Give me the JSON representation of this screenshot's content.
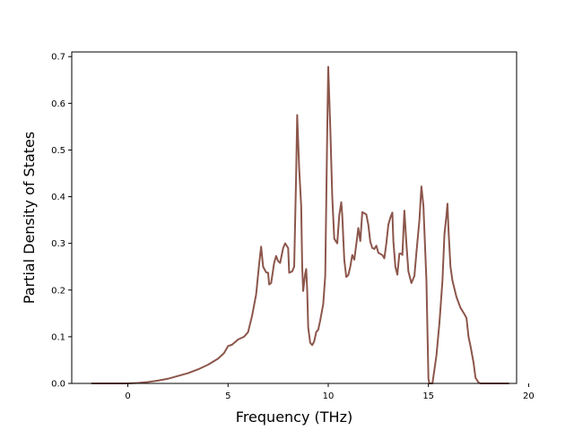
{
  "chart_data": {
    "type": "line",
    "title": "",
    "xlabel": "Frequency (THz)",
    "ylabel": "Partial Density of States",
    "xlim": [
      -2.8,
      19.4
    ],
    "ylim": [
      0.0,
      0.71
    ],
    "grid": false,
    "legend": "none",
    "xticks": [
      "0",
      "5",
      "10",
      "15",
      "20"
    ],
    "xtick_values": [
      0,
      5,
      10,
      15,
      20
    ],
    "yticks": [
      "0.0",
      "0.1",
      "0.2",
      "0.3",
      "0.4",
      "0.5",
      "0.6",
      "0.7"
    ],
    "ytick_values": [
      0.0,
      0.1,
      0.2,
      0.3,
      0.4,
      0.5,
      0.6,
      0.7
    ],
    "series": [
      {
        "color": "#8c564b",
        "points": [
          [
            -1.8,
            0.0
          ],
          [
            -1.0,
            0.0
          ],
          [
            0.0,
            0.0
          ],
          [
            0.5,
            0.001
          ],
          [
            1.0,
            0.003
          ],
          [
            1.5,
            0.006
          ],
          [
            2.0,
            0.01
          ],
          [
            2.5,
            0.016
          ],
          [
            3.0,
            0.022
          ],
          [
            3.5,
            0.03
          ],
          [
            4.0,
            0.04
          ],
          [
            4.5,
            0.053
          ],
          [
            4.8,
            0.065
          ],
          [
            5.0,
            0.08
          ],
          [
            5.2,
            0.083
          ],
          [
            5.5,
            0.094
          ],
          [
            5.8,
            0.1
          ],
          [
            6.0,
            0.11
          ],
          [
            6.2,
            0.145
          ],
          [
            6.4,
            0.19
          ],
          [
            6.55,
            0.255
          ],
          [
            6.65,
            0.293
          ],
          [
            6.75,
            0.25
          ],
          [
            6.9,
            0.238
          ],
          [
            7.0,
            0.237
          ],
          [
            7.05,
            0.212
          ],
          [
            7.15,
            0.215
          ],
          [
            7.3,
            0.258
          ],
          [
            7.4,
            0.273
          ],
          [
            7.5,
            0.262
          ],
          [
            7.6,
            0.258
          ],
          [
            7.75,
            0.29
          ],
          [
            7.85,
            0.3
          ],
          [
            8.0,
            0.29
          ],
          [
            8.05,
            0.237
          ],
          [
            8.2,
            0.24
          ],
          [
            8.3,
            0.25
          ],
          [
            8.4,
            0.45
          ],
          [
            8.45,
            0.575
          ],
          [
            8.55,
            0.46
          ],
          [
            8.65,
            0.38
          ],
          [
            8.7,
            0.25
          ],
          [
            8.75,
            0.198
          ],
          [
            8.85,
            0.235
          ],
          [
            8.9,
            0.245
          ],
          [
            8.95,
            0.2
          ],
          [
            9.0,
            0.12
          ],
          [
            9.1,
            0.087
          ],
          [
            9.2,
            0.082
          ],
          [
            9.3,
            0.09
          ],
          [
            9.4,
            0.11
          ],
          [
            9.5,
            0.115
          ],
          [
            9.6,
            0.135
          ],
          [
            9.75,
            0.17
          ],
          [
            9.85,
            0.23
          ],
          [
            9.95,
            0.54
          ],
          [
            10.0,
            0.678
          ],
          [
            10.1,
            0.55
          ],
          [
            10.2,
            0.4
          ],
          [
            10.3,
            0.31
          ],
          [
            10.45,
            0.3
          ],
          [
            10.55,
            0.36
          ],
          [
            10.65,
            0.388
          ],
          [
            10.7,
            0.36
          ],
          [
            10.8,
            0.265
          ],
          [
            10.9,
            0.228
          ],
          [
            11.0,
            0.232
          ],
          [
            11.1,
            0.25
          ],
          [
            11.2,
            0.275
          ],
          [
            11.3,
            0.265
          ],
          [
            11.45,
            0.315
          ],
          [
            11.5,
            0.333
          ],
          [
            11.6,
            0.305
          ],
          [
            11.7,
            0.367
          ],
          [
            11.9,
            0.362
          ],
          [
            12.0,
            0.34
          ],
          [
            12.1,
            0.303
          ],
          [
            12.2,
            0.29
          ],
          [
            12.3,
            0.288
          ],
          [
            12.4,
            0.295
          ],
          [
            12.5,
            0.28
          ],
          [
            12.7,
            0.275
          ],
          [
            12.8,
            0.268
          ],
          [
            12.9,
            0.3
          ],
          [
            13.0,
            0.34
          ],
          [
            13.1,
            0.355
          ],
          [
            13.2,
            0.366
          ],
          [
            13.25,
            0.305
          ],
          [
            13.35,
            0.25
          ],
          [
            13.45,
            0.233
          ],
          [
            13.55,
            0.278
          ],
          [
            13.65,
            0.278
          ],
          [
            13.7,
            0.275
          ],
          [
            13.8,
            0.37
          ],
          [
            13.9,
            0.3
          ],
          [
            14.0,
            0.24
          ],
          [
            14.15,
            0.215
          ],
          [
            14.3,
            0.23
          ],
          [
            14.4,
            0.28
          ],
          [
            14.55,
            0.35
          ],
          [
            14.65,
            0.422
          ],
          [
            14.75,
            0.38
          ],
          [
            14.9,
            0.22
          ],
          [
            15.0,
            0.01
          ],
          [
            15.05,
            0.0
          ],
          [
            15.2,
            0.0
          ],
          [
            15.3,
            0.03
          ],
          [
            15.4,
            0.06
          ],
          [
            15.55,
            0.13
          ],
          [
            15.7,
            0.22
          ],
          [
            15.8,
            0.32
          ],
          [
            15.9,
            0.36
          ],
          [
            15.95,
            0.385
          ],
          [
            16.0,
            0.33
          ],
          [
            16.1,
            0.25
          ],
          [
            16.2,
            0.22
          ],
          [
            16.4,
            0.185
          ],
          [
            16.6,
            0.162
          ],
          [
            16.8,
            0.148
          ],
          [
            16.9,
            0.14
          ],
          [
            17.0,
            0.1
          ],
          [
            17.1,
            0.08
          ],
          [
            17.25,
            0.045
          ],
          [
            17.35,
            0.012
          ],
          [
            17.5,
            0.002
          ],
          [
            17.6,
            0.0
          ],
          [
            18.0,
            0.0
          ],
          [
            19.0,
            0.0
          ]
        ]
      }
    ]
  }
}
